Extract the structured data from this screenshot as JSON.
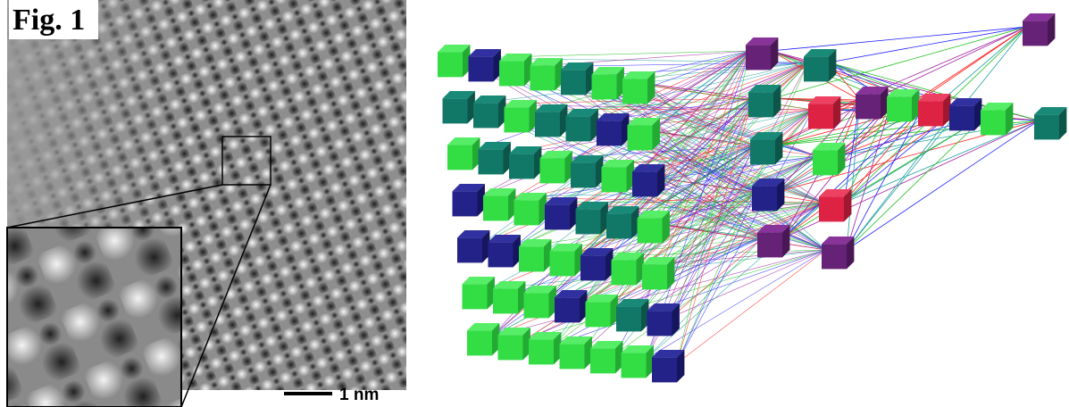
{
  "figure": {
    "label": "Fig. 1",
    "scale_bar": "1 nm"
  }
}
